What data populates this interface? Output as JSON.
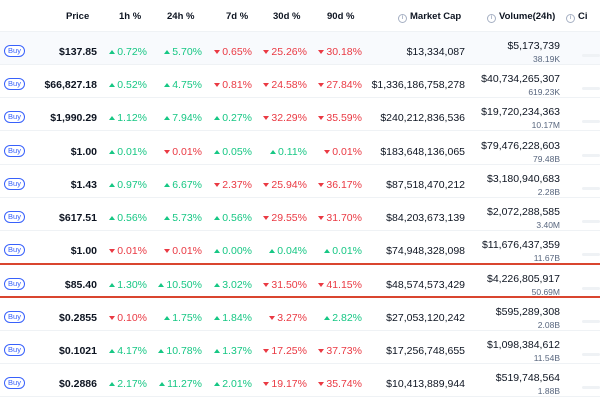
{
  "header": {
    "price": "Price",
    "h1": "1h %",
    "h24": "24h %",
    "d7": "7d %",
    "d30": "30d %",
    "d90": "90d %",
    "market_cap": "Market Cap",
    "volume": "Volume(24h)",
    "circ": "Ci"
  },
  "buy_label": "Buy",
  "rows": [
    {
      "price": "$137.85",
      "h1": "0.72%",
      "h1_dir": "up",
      "h24": "5.70%",
      "h24_dir": "up",
      "d7": "0.65%",
      "d7_dir": "down",
      "d30": "25.26%",
      "d30_dir": "down",
      "d90": "30.18%",
      "d90_dir": "down",
      "mcap": "$13,334,087",
      "vol": "$5,173,739",
      "vol_sub": "38.19K"
    },
    {
      "price": "$66,827.18",
      "h1": "0.52%",
      "h1_dir": "up",
      "h24": "4.75%",
      "h24_dir": "up",
      "d7": "0.81%",
      "d7_dir": "down",
      "d30": "24.58%",
      "d30_dir": "down",
      "d90": "27.84%",
      "d90_dir": "down",
      "mcap": "$1,336,186,758,278",
      "vol": "$40,734,265,307",
      "vol_sub": "619.23K"
    },
    {
      "price": "$1,990.29",
      "h1": "1.12%",
      "h1_dir": "up",
      "h24": "7.94%",
      "h24_dir": "up",
      "d7": "0.27%",
      "d7_dir": "up",
      "d30": "32.29%",
      "d30_dir": "down",
      "d90": "35.59%",
      "d90_dir": "down",
      "mcap": "$240,212,836,536",
      "vol": "$19,720,234,363",
      "vol_sub": "10.17M"
    },
    {
      "price": "$1.00",
      "h1": "0.01%",
      "h1_dir": "up",
      "h24": "0.01%",
      "h24_dir": "down",
      "d7": "0.05%",
      "d7_dir": "up",
      "d30": "0.11%",
      "d30_dir": "up",
      "d90": "0.01%",
      "d90_dir": "down",
      "mcap": "$183,648,136,065",
      "vol": "$79,476,228,603",
      "vol_sub": "79.48B"
    },
    {
      "price": "$1.43",
      "h1": "0.97%",
      "h1_dir": "up",
      "h24": "6.67%",
      "h24_dir": "up",
      "d7": "2.37%",
      "d7_dir": "down",
      "d30": "25.94%",
      "d30_dir": "down",
      "d90": "36.17%",
      "d90_dir": "down",
      "mcap": "$87,518,470,212",
      "vol": "$3,180,940,683",
      "vol_sub": "2.28B"
    },
    {
      "price": "$617.51",
      "h1": "0.56%",
      "h1_dir": "up",
      "h24": "5.73%",
      "h24_dir": "up",
      "d7": "0.56%",
      "d7_dir": "up",
      "d30": "29.55%",
      "d30_dir": "down",
      "d90": "31.70%",
      "d90_dir": "down",
      "mcap": "$84,203,673,139",
      "vol": "$2,072,288,585",
      "vol_sub": "3.40M"
    },
    {
      "price": "$1.00",
      "h1": "0.01%",
      "h1_dir": "down",
      "h24": "0.01%",
      "h24_dir": "down",
      "d7": "0.00%",
      "d7_dir": "up",
      "d30": "0.04%",
      "d30_dir": "up",
      "d90": "0.01%",
      "d90_dir": "up",
      "mcap": "$74,948,328,098",
      "vol": "$11,676,437,359",
      "vol_sub": "11.67B"
    },
    {
      "price": "$85.40",
      "h1": "1.30%",
      "h1_dir": "up",
      "h24": "10.50%",
      "h24_dir": "up",
      "d7": "3.02%",
      "d7_dir": "up",
      "d30": "31.50%",
      "d30_dir": "down",
      "d90": "41.15%",
      "d90_dir": "down",
      "mcap": "$48,574,573,429",
      "vol": "$4,226,805,917",
      "vol_sub": "50.69M"
    },
    {
      "price": "$0.2855",
      "h1": "0.10%",
      "h1_dir": "down",
      "h24": "1.75%",
      "h24_dir": "up",
      "d7": "1.84%",
      "d7_dir": "up",
      "d30": "3.27%",
      "d30_dir": "down",
      "d90": "2.82%",
      "d90_dir": "up",
      "mcap": "$27,053,120,242",
      "vol": "$595,289,308",
      "vol_sub": "2.08B"
    },
    {
      "price": "$0.1021",
      "h1": "4.17%",
      "h1_dir": "up",
      "h24": "10.78%",
      "h24_dir": "up",
      "d7": "1.37%",
      "d7_dir": "up",
      "d30": "17.25%",
      "d30_dir": "down",
      "d90": "37.73%",
      "d90_dir": "down",
      "mcap": "$17,256,748,655",
      "vol": "$1,098,384,612",
      "vol_sub": "11.54B"
    },
    {
      "price": "$0.2886",
      "h1": "2.17%",
      "h1_dir": "up",
      "h24": "11.27%",
      "h24_dir": "up",
      "d7": "2.01%",
      "d7_dir": "up",
      "d30": "19.17%",
      "d30_dir": "down",
      "d90": "35.74%",
      "d90_dir": "down",
      "mcap": "$10,413,889,944",
      "vol": "$519,748,564",
      "vol_sub": "1.88B"
    }
  ],
  "colors": {
    "up": "#16c784",
    "down": "#ea3943",
    "accent": "#3861fb",
    "highlight": "#d9452f"
  }
}
